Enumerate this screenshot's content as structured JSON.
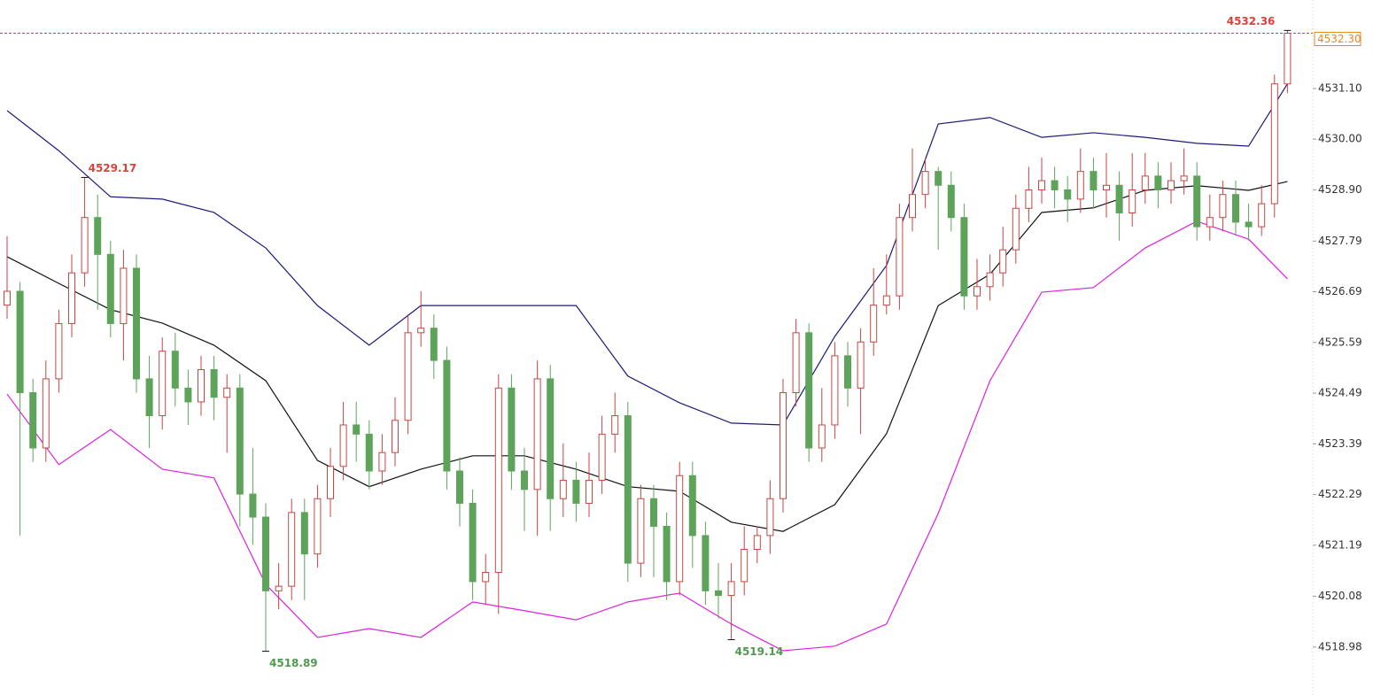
{
  "chart_data": {
    "type": "candlestick",
    "open": [
      4526.4,
      4526.7,
      4524.5,
      4523.3,
      4524.8,
      4526.0,
      4527.1,
      4528.3,
      4527.5,
      4526.0,
      4527.2,
      4524.8,
      4524.0,
      4525.4,
      4524.6,
      4524.3,
      4525.0,
      4524.4,
      4524.6,
      4522.3,
      4521.8,
      4520.2,
      4520.3,
      4521.9,
      4521.0,
      4522.2,
      4522.9,
      4523.8,
      4523.6,
      4522.8,
      4523.2,
      4523.9,
      4525.8,
      4525.9,
      4525.2,
      4522.8,
      4522.1,
      4520.4,
      4520.6,
      4524.6,
      4522.8,
      4522.4,
      4524.8,
      4522.2,
      4522.6,
      4522.1,
      4522.6,
      4523.6,
      4524.0,
      4520.8,
      4522.2,
      4521.6,
      4520.4,
      4522.7,
      4521.4,
      4520.2,
      4520.1,
      4520.4,
      4521.1,
      4521.4,
      4522.2,
      4524.5,
      4525.8,
      4523.3,
      4523.8,
      4525.3,
      4524.6,
      4525.6,
      4526.4,
      4526.6,
      4528.3,
      4528.8,
      4529.3,
      4529.0,
      4528.3,
      4526.6,
      4526.8,
      4527.1,
      4527.6,
      4528.5,
      4528.9,
      4529.1,
      4528.9,
      4528.7,
      4529.3,
      4528.9,
      4529.0,
      4528.4,
      4528.9,
      4529.2,
      4528.9,
      4529.1,
      4529.2,
      4528.1,
      4528.3,
      4528.8,
      4528.2,
      4528.1,
      4528.6,
      4531.2
    ],
    "high": [
      4527.9,
      4526.9,
      4524.8,
      4525.2,
      4526.3,
      4527.5,
      4529.17,
      4528.8,
      4527.8,
      4527.6,
      4527.5,
      4525.3,
      4525.7,
      4525.8,
      4525.0,
      4525.3,
      4525.3,
      4524.9,
      4524.9,
      4523.3,
      4522.1,
      4520.8,
      4522.2,
      4522.2,
      4522.5,
      4523.3,
      4524.3,
      4524.3,
      4523.9,
      4523.6,
      4524.4,
      4526.2,
      4526.7,
      4526.2,
      4525.5,
      4523.1,
      4522.4,
      4521.0,
      4524.9,
      4524.9,
      4523.3,
      4525.2,
      4525.1,
      4523.4,
      4523.0,
      4523.2,
      4524.0,
      4524.5,
      4524.3,
      4522.5,
      4522.5,
      4521.9,
      4523.0,
      4523.0,
      4521.7,
      4520.8,
      4520.8,
      4521.6,
      4521.6,
      4522.6,
      4524.8,
      4526.1,
      4526.0,
      4524.6,
      4525.6,
      4525.6,
      4525.9,
      4527.2,
      4527.5,
      4528.6,
      4529.8,
      4529.6,
      4529.4,
      4529.3,
      4528.6,
      4527.4,
      4527.5,
      4528.1,
      4528.8,
      4529.4,
      4529.6,
      4529.4,
      4529.2,
      4529.8,
      4529.6,
      4529.7,
      4529.3,
      4529.7,
      4529.7,
      4529.5,
      4529.5,
      4529.8,
      4529.5,
      4528.8,
      4529.1,
      4529.1,
      4528.6,
      4529.0,
      4531.4,
      4532.36
    ],
    "low": [
      4526.1,
      4521.4,
      4523.0,
      4523.0,
      4524.5,
      4525.7,
      4526.8,
      4526.3,
      4525.7,
      4525.2,
      4524.5,
      4523.3,
      4523.7,
      4524.2,
      4523.8,
      4524.0,
      4523.9,
      4523.2,
      4521.6,
      4521.2,
      4518.89,
      4519.8,
      4520.0,
      4520.0,
      4520.7,
      4521.8,
      4522.6,
      4523.0,
      4522.4,
      4522.5,
      4522.9,
      4523.6,
      4525.5,
      4524.8,
      4522.4,
      4521.6,
      4520.0,
      4519.9,
      4519.7,
      4522.4,
      4521.5,
      4521.4,
      4521.5,
      4521.8,
      4521.7,
      4521.8,
      4522.3,
      4523.2,
      4520.4,
      4520.5,
      4520.5,
      4520.0,
      4520.1,
      4520.7,
      4519.9,
      4519.6,
      4519.14,
      4520.1,
      4520.8,
      4521.0,
      4521.9,
      4524.2,
      4523.0,
      4523.0,
      4523.5,
      4524.2,
      4523.6,
      4525.3,
      4526.2,
      4526.3,
      4528.0,
      4528.5,
      4527.6,
      4528.0,
      4526.3,
      4526.3,
      4526.5,
      4526.8,
      4527.3,
      4528.2,
      4528.6,
      4528.5,
      4528.2,
      4528.4,
      4528.5,
      4528.3,
      4527.8,
      4528.1,
      4528.6,
      4528.5,
      4528.6,
      4528.8,
      4527.8,
      4527.8,
      4528.0,
      4527.9,
      4527.8,
      4527.9,
      4528.3,
      4531.0
    ],
    "close": [
      4526.7,
      4524.5,
      4523.3,
      4524.8,
      4526.0,
      4527.1,
      4528.3,
      4527.5,
      4526.0,
      4527.2,
      4524.8,
      4524.0,
      4525.4,
      4524.6,
      4524.3,
      4525.0,
      4524.4,
      4524.6,
      4522.3,
      4521.8,
      4520.2,
      4520.3,
      4521.9,
      4521.0,
      4522.2,
      4522.9,
      4523.8,
      4523.6,
      4522.8,
      4523.2,
      4523.9,
      4525.8,
      4525.9,
      4525.2,
      4522.8,
      4522.1,
      4520.4,
      4520.6,
      4524.6,
      4522.8,
      4522.4,
      4524.8,
      4522.2,
      4522.6,
      4522.1,
      4522.6,
      4523.6,
      4524.0,
      4520.8,
      4522.2,
      4521.6,
      4520.4,
      4522.7,
      4521.4,
      4520.2,
      4520.1,
      4520.4,
      4521.1,
      4521.4,
      4522.2,
      4524.5,
      4525.8,
      4523.3,
      4523.8,
      4525.3,
      4524.6,
      4525.6,
      4526.4,
      4526.6,
      4528.3,
      4528.8,
      4529.3,
      4529.0,
      4528.3,
      4526.6,
      4526.8,
      4527.1,
      4527.6,
      4528.5,
      4528.9,
      4529.1,
      4528.9,
      4528.7,
      4529.3,
      4528.9,
      4529.0,
      4528.4,
      4528.9,
      4529.2,
      4528.9,
      4529.1,
      4529.2,
      4528.1,
      4528.3,
      4528.8,
      4528.2,
      4528.1,
      4528.6,
      4531.2,
      4532.3
    ],
    "up_color": "#c8453f",
    "down_color": "#5ea35a",
    "bands": [
      {
        "color": "#1a1a7a",
        "x": [
          0,
          4,
          8,
          12,
          16,
          20,
          24,
          28,
          32,
          36,
          40,
          44,
          48,
          52,
          56,
          60,
          64,
          68,
          72,
          76,
          80,
          84,
          88,
          92,
          96,
          99
        ],
        "values": [
          4530.62,
          4529.75,
          4528.75,
          4528.7,
          4528.41,
          4527.64,
          4526.39,
          4525.53,
          4526.39,
          4526.39,
          4526.39,
          4526.39,
          4524.86,
          4524.28,
          4523.84,
          4523.8,
          4525.72,
          4527.26,
          4530.33,
          4530.47,
          4530.04,
          4530.14,
          4530.04,
          4529.91,
          4529.85,
          4531.2
        ]
      },
      {
        "color": "#111111",
        "x": [
          0,
          4,
          8,
          12,
          16,
          20,
          24,
          28,
          32,
          36,
          40,
          44,
          48,
          52,
          56,
          60,
          64,
          68,
          72,
          76,
          80,
          84,
          88,
          92,
          96,
          99
        ],
        "values": [
          4527.45,
          4526.87,
          4526.3,
          4526.01,
          4525.53,
          4524.76,
          4523.03,
          4522.46,
          4522.84,
          4523.13,
          4523.13,
          4522.84,
          4522.46,
          4522.36,
          4521.69,
          4521.49,
          4522.07,
          4523.61,
          4526.39,
          4527.07,
          4528.41,
          4528.51,
          4528.89,
          4528.99,
          4528.89,
          4529.08
        ]
      },
      {
        "color": "#e020e0",
        "x": [
          0,
          4,
          8,
          12,
          16,
          20,
          24,
          28,
          32,
          36,
          40,
          44,
          48,
          52,
          56,
          60,
          64,
          68,
          72,
          76,
          80,
          84,
          88,
          92,
          96,
          99
        ],
        "values": [
          4524.47,
          4522.94,
          4523.7,
          4522.84,
          4522.65,
          4520.34,
          4519.19,
          4519.38,
          4519.19,
          4519.96,
          4519.77,
          4519.57,
          4519.96,
          4520.15,
          4519.48,
          4518.9,
          4519.0,
          4519.48,
          4521.88,
          4524.76,
          4526.68,
          4526.78,
          4527.64,
          4528.22,
          4527.83,
          4526.97
        ]
      }
    ],
    "ylim": [
      4517.94,
      4533.02
    ],
    "yticks": [
      4518.98,
      4520.08,
      4521.19,
      4522.29,
      4523.39,
      4524.49,
      4525.59,
      4526.69,
      4527.79,
      {
        "value": 4528.9,
        "label": "4528.90"
      },
      {
        "value": 4530,
        "label": "4530.00"
      },
      {
        "value": 4531.1,
        "label": "4531.10"
      }
    ],
    "current_price": {
      "value": 4532.3,
      "label": "4532.30"
    },
    "current_color": "#e8891f"
  }
}
